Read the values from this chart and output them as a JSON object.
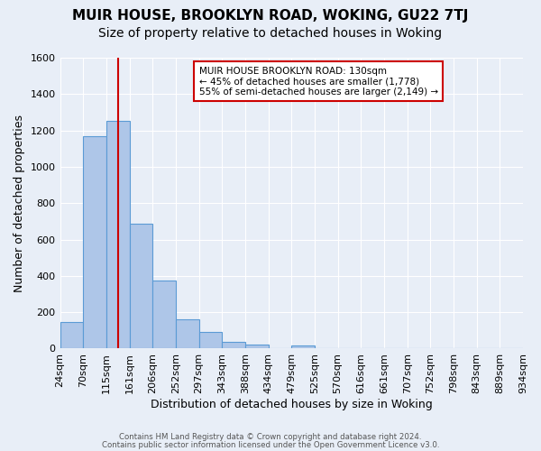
{
  "title": "MUIR HOUSE, BROOKLYN ROAD, WOKING, GU22 7TJ",
  "subtitle": "Size of property relative to detached houses in Woking",
  "xlabel": "Distribution of detached houses by size in Woking",
  "ylabel": "Number of detached properties",
  "footer_lines": [
    "Contains HM Land Registry data © Crown copyright and database right 2024.",
    "Contains public sector information licensed under the Open Government Licence v3.0."
  ],
  "bin_labels": [
    "24sqm",
    "70sqm",
    "115sqm",
    "161sqm",
    "206sqm",
    "252sqm",
    "297sqm",
    "343sqm",
    "388sqm",
    "434sqm",
    "479sqm",
    "525sqm",
    "570sqm",
    "616sqm",
    "661sqm",
    "707sqm",
    "752sqm",
    "798sqm",
    "843sqm",
    "889sqm",
    "934sqm"
  ],
  "bar_values": [
    148,
    1170,
    1255,
    685,
    375,
    160,
    90,
    38,
    22,
    0,
    18,
    0,
    0,
    0,
    0,
    0,
    0,
    0,
    0,
    0
  ],
  "bar_color": "#aec6e8",
  "bar_edge_color": "#5b9bd5",
  "vline_bin_index": 2,
  "vline_color": "#cc0000",
  "annotation_title": "MUIR HOUSE BROOKLYN ROAD: 130sqm",
  "annotation_line1": "← 45% of detached houses are smaller (1,778)",
  "annotation_line2": "55% of semi-detached houses are larger (2,149) →",
  "annotation_box_color": "#ffffff",
  "annotation_box_edge_color": "#cc0000",
  "ylim": [
    0,
    1600
  ],
  "yticks": [
    0,
    200,
    400,
    600,
    800,
    1000,
    1200,
    1400,
    1600
  ],
  "bg_color": "#e8eef7",
  "grid_color": "#ffffff",
  "title_fontsize": 11,
  "subtitle_fontsize": 10,
  "axis_label_fontsize": 9,
  "tick_fontsize": 8
}
